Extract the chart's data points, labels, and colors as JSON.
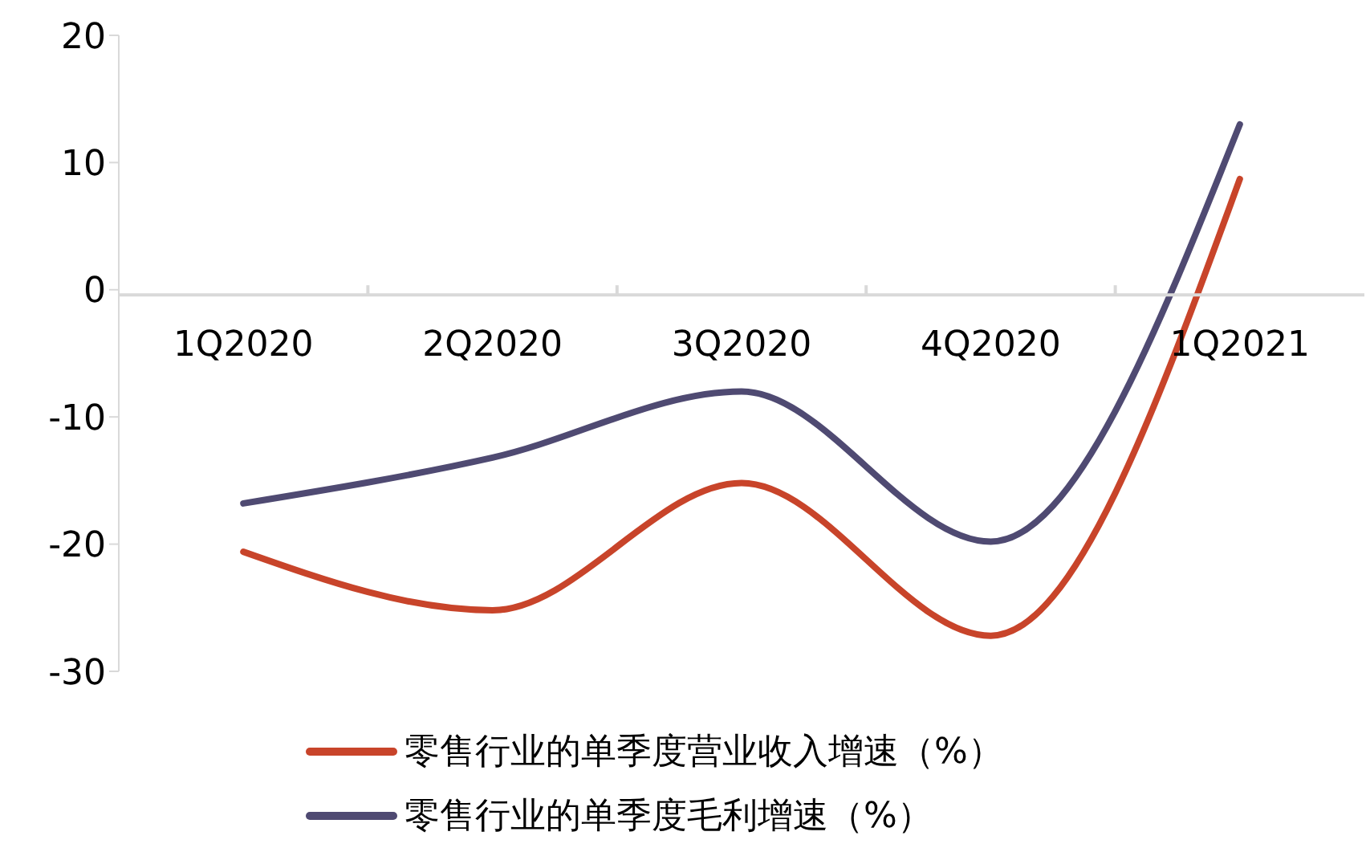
{
  "chart_data": {
    "type": "line",
    "categories": [
      "1Q2020",
      "2Q2020",
      "3Q2020",
      "4Q2020",
      "1Q2021"
    ],
    "series": [
      {
        "name": "零售行业的单季度营业收入增速（%）",
        "color": "#c8442a",
        "values": [
          -20.6,
          -25.2,
          -15.2,
          -27.2,
          8.7
        ]
      },
      {
        "name": "零售行业的单季度毛利增速（%）",
        "color": "#4f4a72",
        "values": [
          -16.8,
          -13.2,
          -8.0,
          -19.8,
          13.0
        ]
      }
    ],
    "ylim": [
      -30,
      20
    ],
    "yticks": [
      -30,
      -20,
      -10,
      0,
      10,
      20
    ],
    "grid": false,
    "legend": "bottom",
    "marker": "none",
    "line_style": "solid"
  }
}
